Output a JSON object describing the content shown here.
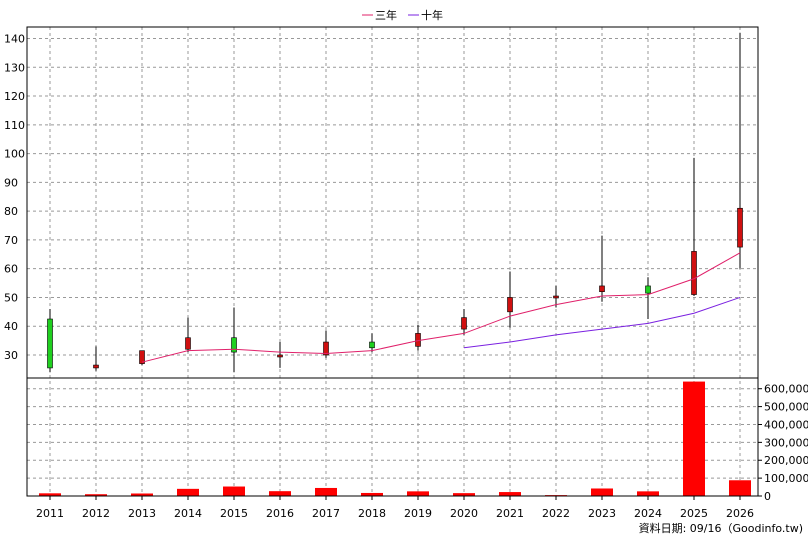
{
  "chart_data": {
    "type": "candlestick",
    "legend": [
      {
        "name": "三年",
        "color": "#e0206a"
      },
      {
        "name": "十年",
        "color": "#7a20e0"
      }
    ],
    "legend_position": "top-center",
    "grid": true,
    "categories": [
      "2011",
      "2012",
      "2013",
      "2014",
      "2015",
      "2016",
      "2017",
      "2018",
      "2019",
      "2020",
      "2021",
      "2022",
      "2023",
      "2024",
      "2025",
      "2026"
    ],
    "price_axis": {
      "min": 22,
      "max": 144,
      "ticks": [
        30,
        40,
        50,
        60,
        70,
        80,
        90,
        100,
        110,
        120,
        130,
        140
      ]
    },
    "volume_axis": {
      "min": 0,
      "max": 660000,
      "ticks": [
        "0",
        "100,000",
        "200,000",
        "300,000",
        "400,000",
        "500,000",
        "600,000"
      ],
      "tick_values": [
        0,
        100000,
        200000,
        300000,
        400000,
        500000,
        600000
      ]
    },
    "candles": [
      {
        "year": "2011",
        "open": 42.5,
        "close": 25.5,
        "high": 46,
        "low": 24,
        "color": "#20d020"
      },
      {
        "year": "2012",
        "open": 25.5,
        "close": 26.5,
        "high": 33,
        "low": 24.5,
        "color": "#d01010"
      },
      {
        "year": "2013",
        "open": 27,
        "close": 31.5,
        "high": 31.5,
        "low": 26.5,
        "color": "#d01010"
      },
      {
        "year": "2014",
        "open": 32,
        "close": 36,
        "high": 43,
        "low": 31,
        "color": "#d01010"
      },
      {
        "year": "2015",
        "open": 36,
        "close": 31,
        "high": 46.5,
        "low": 24,
        "color": "#20d020"
      },
      {
        "year": "2016",
        "open": 30,
        "close": 30,
        "high": 34.5,
        "low": 25.5,
        "color": "#d01010"
      },
      {
        "year": "2017",
        "open": 30,
        "close": 34.5,
        "high": 38.5,
        "low": 29,
        "color": "#d01010"
      },
      {
        "year": "2018",
        "open": 34.5,
        "close": 32.5,
        "high": 37.5,
        "low": 31,
        "color": "#20d020"
      },
      {
        "year": "2019",
        "open": 33,
        "close": 37.5,
        "high": 40.5,
        "low": 31.5,
        "color": "#d01010"
      },
      {
        "year": "2020",
        "open": 39,
        "close": 43,
        "high": 46,
        "low": 37,
        "color": "#d01010"
      },
      {
        "year": "2021",
        "open": 45,
        "close": 50,
        "high": 59,
        "low": 39.5,
        "color": "#d01010"
      },
      {
        "year": "2022",
        "open": 50,
        "close": 50.5,
        "high": 54,
        "low": 46.5,
        "color": "#d01010"
      },
      {
        "year": "2023",
        "open": 52,
        "close": 54,
        "high": 71.5,
        "low": 48.5,
        "color": "#d01010"
      },
      {
        "year": "2024",
        "open": 54,
        "close": 51.5,
        "high": 57,
        "low": 42.5,
        "color": "#20d020"
      },
      {
        "year": "2025",
        "open": 51,
        "close": 66,
        "high": 98.5,
        "low": 50.5,
        "color": "#d01010"
      },
      {
        "year": "2026",
        "open": 67.5,
        "close": 81,
        "high": 142,
        "low": 60,
        "color": "#d01010"
      }
    ],
    "ma3": [
      null,
      null,
      27.5,
      31.5,
      32,
      31,
      30.5,
      31.5,
      35,
      37.5,
      43.5,
      47.5,
      50.5,
      51,
      56.5,
      65.5
    ],
    "ma10": [
      null,
      null,
      null,
      null,
      null,
      null,
      null,
      null,
      null,
      32.5,
      34.5,
      37,
      39,
      41,
      44.5,
      50
    ],
    "volumes": [
      15000,
      10000,
      14000,
      40000,
      53000,
      27000,
      45000,
      17000,
      26000,
      16000,
      22000,
      5000,
      42000,
      26000,
      640000,
      88000
    ],
    "footer": "資料日期: 09/16（Goodinfo.tw)"
  }
}
